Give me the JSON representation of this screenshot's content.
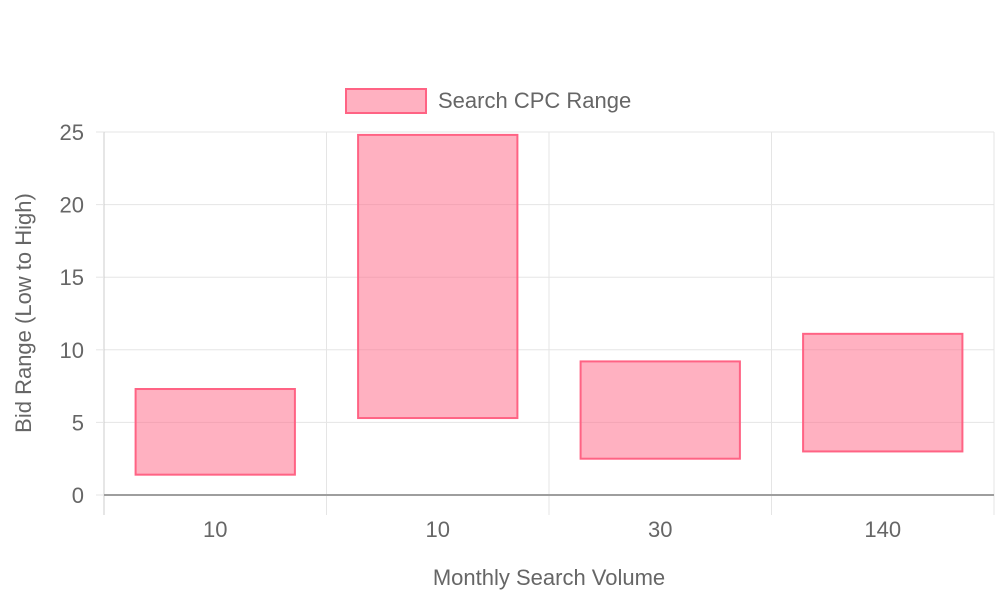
{
  "chart_data": {
    "type": "bar",
    "bar_style": "floating-range",
    "categories": [
      "10",
      "10",
      "30",
      "140"
    ],
    "series": [
      {
        "name": "Search CPC Range",
        "ranges": [
          [
            1.4,
            7.3
          ],
          [
            5.3,
            24.8
          ],
          [
            2.5,
            9.2
          ],
          [
            3.0,
            11.1
          ]
        ],
        "color": "#ff6384",
        "fill": "rgba(255,99,132,0.5)"
      }
    ],
    "xlabel": "Monthly Search Volume",
    "ylabel": "Bid Range (Low to High)",
    "ylim": [
      0,
      25
    ],
    "yticks": [
      0,
      5,
      10,
      15,
      20,
      25
    ],
    "grid": true,
    "legend_position": "top"
  }
}
